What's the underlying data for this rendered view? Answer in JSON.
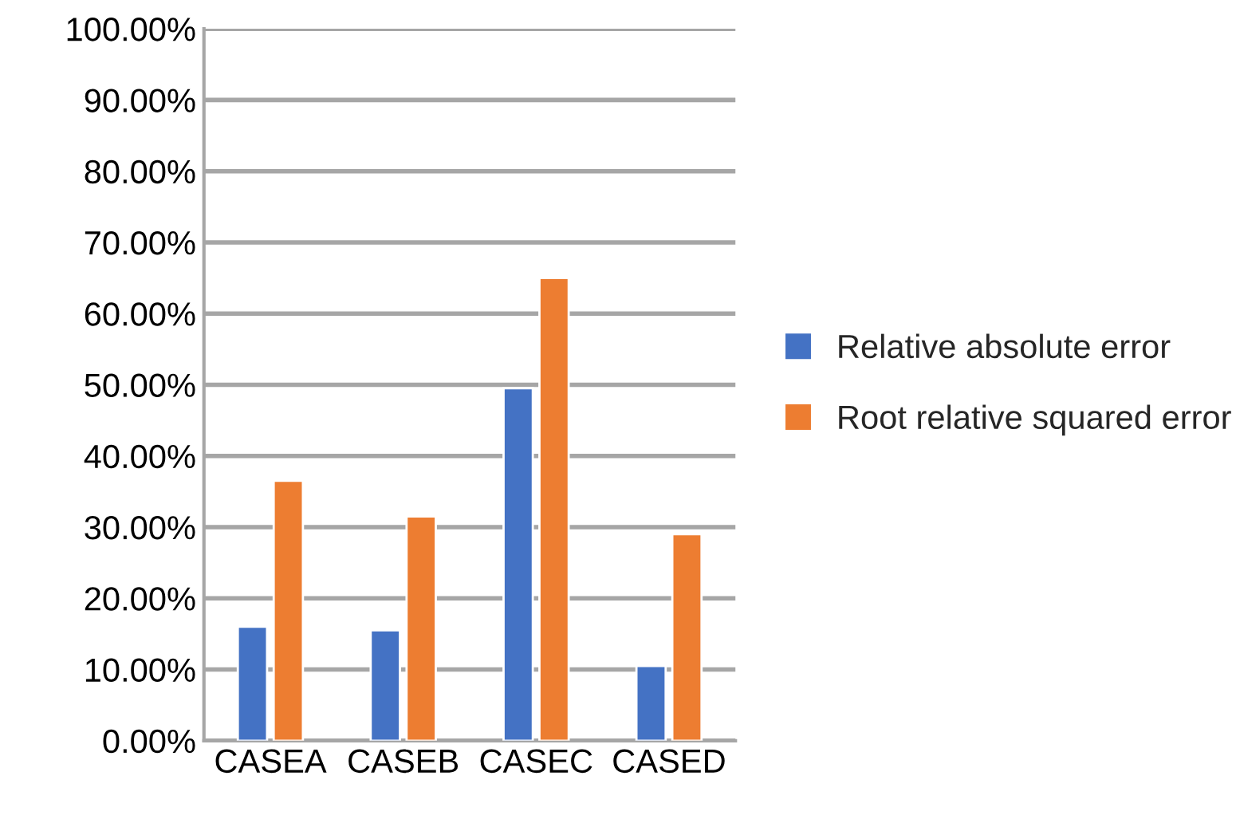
{
  "chart_data": {
    "type": "bar",
    "categories": [
      "CASEA",
      "CASEB",
      "CASEC",
      "CASED"
    ],
    "series": [
      {
        "name": "Relative absolute error",
        "color": "#4472c4",
        "values": [
          16,
          15.5,
          49.5,
          10.5
        ]
      },
      {
        "name": "Root relative squared error",
        "color": "#ed7d31",
        "values": [
          36.5,
          31.5,
          65,
          29
        ]
      }
    ],
    "ylim": [
      0,
      100
    ],
    "yticks": [
      {
        "value": 0,
        "label": "0.00%"
      },
      {
        "value": 10,
        "label": "10.00%"
      },
      {
        "value": 20,
        "label": "20.00%"
      },
      {
        "value": 30,
        "label": "30.00%"
      },
      {
        "value": 40,
        "label": "40.00%"
      },
      {
        "value": 50,
        "label": "50.00%"
      },
      {
        "value": 60,
        "label": "60.00%"
      },
      {
        "value": 70,
        "label": "70.00%"
      },
      {
        "value": 80,
        "label": "80.00%"
      },
      {
        "value": 90,
        "label": "90.00%"
      },
      {
        "value": 100,
        "label": "100.00%"
      }
    ],
    "grid": "y",
    "legend": "right"
  }
}
